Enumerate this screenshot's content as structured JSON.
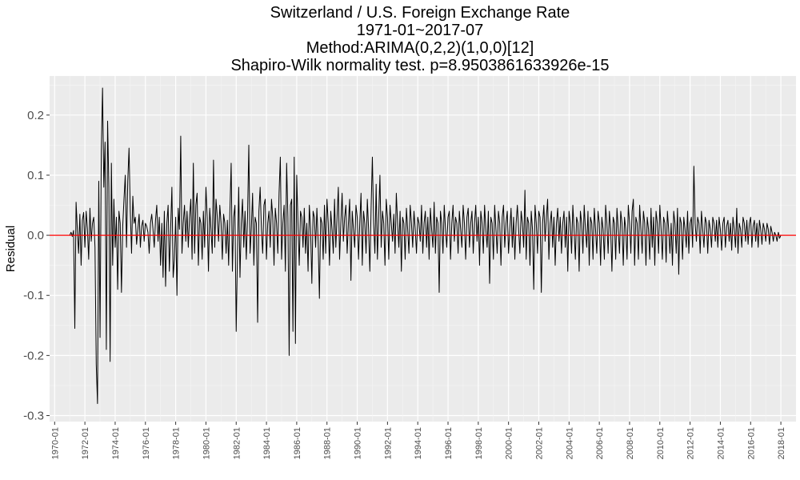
{
  "chart_data": {
    "type": "line",
    "title_lines": [
      "Switzerland / U.S. Foreign Exchange Rate",
      "1971-01~2017-07",
      "Method:ARIMA(0,2,2)(1,0,0)[12]",
      "Shapiro-Wilk normality test. p=8.9503861633926e-15"
    ],
    "xlabel": "",
    "ylabel": "Residual",
    "x_range": [
      "1969-09",
      "2019-01"
    ],
    "ylim": [
      -0.31,
      0.265
    ],
    "y_ticks": [
      -0.3,
      -0.2,
      -0.1,
      0.0,
      0.1,
      0.2
    ],
    "y_tick_labels": [
      "-0.3",
      "-0.2",
      "-0.1",
      "0.0",
      "0.1",
      "0.2"
    ],
    "x_tick_labels": [
      "1970-01",
      "1972-01",
      "1974-01",
      "1976-01",
      "1978-01",
      "1980-01",
      "1982-01",
      "1984-01",
      "1986-01",
      "1988-01",
      "1990-01",
      "1992-01",
      "1994-01",
      "1996-01",
      "1998-01",
      "2000-01",
      "2002-01",
      "2004-01",
      "2006-01",
      "2008-01",
      "2010-01",
      "2012-01",
      "2014-01",
      "2016-01",
      "2018-01"
    ],
    "reference_line": {
      "y": 0,
      "color": "#ff0000"
    },
    "series": [
      {
        "start": "1971-01",
        "end": "2017-07",
        "frequency": "monthly",
        "color": "#000000",
        "values": [
          0.0,
          0.005,
          -0.002,
          0.008,
          -0.155,
          0.055,
          0.01,
          -0.03,
          0.035,
          -0.05,
          0.025,
          0.038,
          -0.02,
          0.04,
          0.01,
          -0.04,
          0.045,
          -0.01,
          0.02,
          0.03,
          -0.02,
          -0.215,
          -0.28,
          0.09,
          -0.17,
          0.14,
          0.245,
          0.08,
          0.155,
          -0.19,
          0.19,
          0.08,
          -0.21,
          0.12,
          -0.05,
          0.06,
          -0.02,
          0.03,
          -0.09,
          0.04,
          0.02,
          -0.095,
          0.015,
          0.06,
          0.1,
          -0.02,
          0.09,
          0.145,
          0.04,
          -0.03,
          0.065,
          0.02,
          0.03,
          -0.015,
          0.01,
          0.035,
          -0.02,
          0.015,
          0.025,
          -0.01,
          0.02,
          0.015,
          0.005,
          -0.03,
          0.02,
          0.035,
          0.01,
          -0.02,
          0.025,
          0.05,
          -0.01,
          0.03,
          -0.05,
          0.02,
          -0.07,
          0.04,
          -0.085,
          0.02,
          0.05,
          -0.06,
          0.01,
          0.08,
          -0.07,
          -0.04,
          0.03,
          -0.1,
          0.045,
          0.01,
          0.165,
          -0.03,
          0.02,
          0.05,
          -0.01,
          0.04,
          -0.02,
          0.03,
          0.06,
          -0.04,
          0.12,
          -0.03,
          0.05,
          0.07,
          -0.05,
          0.03,
          0.02,
          -0.04,
          0.04,
          -0.02,
          0.08,
          0.03,
          -0.06,
          0.045,
          0.01,
          -0.03,
          0.125,
          -0.02,
          0.06,
          0.03,
          -0.01,
          0.05,
          0.02,
          -0.04,
          0.035,
          0.02,
          -0.03,
          0.025,
          -0.05,
          0.04,
          0.12,
          -0.06,
          0.03,
          0.05,
          -0.16,
          -0.03,
          0.08,
          -0.07,
          0.02,
          0.06,
          -0.02,
          0.04,
          -0.04,
          0.03,
          0.15,
          -0.03,
          0.01,
          0.07,
          -0.05,
          0.03,
          0.02,
          -0.145,
          0.04,
          0.08,
          0.01,
          -0.03,
          0.05,
          0.06,
          -0.04,
          0.02,
          0.04,
          -0.02,
          0.06,
          0.03,
          -0.05,
          0.045,
          0.02,
          -0.03,
          0.07,
          0.13,
          -0.04,
          0.02,
          0.05,
          -0.06,
          0.12,
          0.03,
          -0.2,
          0.05,
          0.06,
          -0.16,
          0.13,
          -0.18,
          0.1,
          0.02,
          -0.05,
          0.04,
          0.03,
          -0.02,
          0.045,
          -0.03,
          0.02,
          -0.06,
          0.05,
          0.01,
          -0.08,
          0.04,
          0.03,
          -0.02,
          0.045,
          -0.01,
          -0.105,
          0.03,
          0.02,
          -0.04,
          0.05,
          -0.03,
          0.06,
          0.02,
          -0.05,
          0.04,
          0.01,
          -0.03,
          0.06,
          -0.02,
          0.03,
          0.08,
          -0.04,
          0.02,
          0.07,
          -0.01,
          0.03,
          0.05,
          -0.03,
          0.02,
          0.06,
          -0.075,
          0.04,
          0.01,
          -0.02,
          0.05,
          0.03,
          -0.04,
          0.02,
          0.07,
          -0.05,
          0.04,
          0.02,
          -0.03,
          0.06,
          0.01,
          -0.06,
          0.045,
          0.13,
          0.02,
          -0.03,
          0.085,
          -0.04,
          0.03,
          0.1,
          -0.02,
          0.04,
          0.02,
          -0.05,
          0.06,
          0.03,
          -0.04,
          0.05,
          0.02,
          -0.01,
          0.035,
          -0.03,
          0.07,
          0.02,
          -0.02,
          0.04,
          -0.06,
          0.03,
          0.02,
          -0.04,
          0.045,
          0.01,
          -0.03,
          0.05,
          0.02,
          -0.02,
          0.04,
          0.01,
          -0.03,
          0.03,
          0.02,
          -0.01,
          0.05,
          -0.03,
          0.02,
          0.04,
          -0.02,
          0.03,
          -0.04,
          0.045,
          0.01,
          -0.02,
          0.055,
          -0.03,
          0.03,
          0.02,
          -0.095,
          0.04,
          0.02,
          -0.03,
          0.05,
          0.01,
          -0.02,
          0.03,
          0.04,
          -0.04,
          0.02,
          0.05,
          -0.01,
          0.03,
          0.02,
          -0.03,
          0.04,
          0.01,
          -0.02,
          0.05,
          0.02,
          -0.04,
          0.03,
          0.045,
          -0.02,
          0.02,
          0.04,
          -0.03,
          0.02,
          0.05,
          -0.01,
          0.03,
          -0.05,
          0.04,
          0.02,
          -0.03,
          0.05,
          0.01,
          -0.02,
          0.04,
          -0.08,
          0.03,
          0.02,
          -0.04,
          0.05,
          0.01,
          -0.03,
          0.04,
          0.02,
          -0.05,
          0.03,
          0.05,
          -0.02,
          0.02,
          0.04,
          -0.03,
          0.01,
          0.045,
          -0.02,
          0.03,
          -0.04,
          0.02,
          0.05,
          0.01,
          -0.03,
          0.04,
          0.02,
          -0.02,
          0.075,
          -0.04,
          0.03,
          0.02,
          -0.05,
          0.04,
          0.01,
          -0.09,
          0.05,
          0.02,
          -0.03,
          0.04,
          0.03,
          -0.095,
          0.02,
          0.05,
          -0.01,
          0.03,
          0.06,
          -0.04,
          0.02,
          0.04,
          -0.02,
          0.03,
          -0.05,
          0.02,
          0.045,
          -0.01,
          0.03,
          -0.03,
          0.02,
          0.04,
          -0.02,
          0.03,
          -0.06,
          0.04,
          0.02,
          -0.03,
          0.05,
          0.01,
          -0.04,
          0.03,
          0.02,
          -0.06,
          0.04,
          0.02,
          -0.03,
          0.05,
          0.01,
          -0.02,
          0.04,
          -0.05,
          0.03,
          0.02,
          -0.04,
          0.045,
          0.01,
          -0.03,
          0.04,
          0.02,
          -0.05,
          0.03,
          0.01,
          -0.04,
          0.05,
          0.02,
          -0.03,
          0.04,
          0.01,
          -0.06,
          0.03,
          0.02,
          -0.04,
          0.045,
          0.01,
          -0.03,
          0.04,
          0.02,
          -0.05,
          0.03,
          0.01,
          -0.04,
          0.05,
          0.02,
          -0.03,
          0.04,
          0.06,
          -0.05,
          0.03,
          0.02,
          -0.04,
          0.05,
          0.01,
          -0.03,
          0.04,
          0.02,
          -0.05,
          0.03,
          0.01,
          -0.04,
          0.045,
          -0.02,
          0.03,
          -0.05,
          0.04,
          0.02,
          -0.03,
          0.05,
          0.01,
          -0.04,
          0.03,
          0.02,
          -0.045,
          0.04,
          0.01,
          -0.03,
          0.02,
          -0.05,
          0.04,
          0.02,
          -0.03,
          0.045,
          -0.065,
          0.03,
          0.02,
          -0.04,
          0.03,
          0.01,
          -0.02,
          0.04,
          -0.03,
          0.02,
          0.03,
          -0.02,
          0.115,
          0.02,
          -0.01,
          0.03,
          0.02,
          -0.03,
          0.04,
          0.01,
          -0.02,
          0.03,
          0.02,
          -0.03,
          0.025,
          0.01,
          -0.02,
          0.03,
          0.02,
          -0.01,
          0.025,
          -0.02,
          0.03,
          0.01,
          -0.025,
          0.02,
          0.03,
          -0.02,
          0.015,
          0.025,
          -0.01,
          0.02,
          -0.025,
          0.03,
          0.01,
          -0.02,
          0.045,
          -0.03,
          0.02,
          0.01,
          -0.02,
          0.03,
          0.02,
          -0.01,
          0.025,
          -0.015,
          0.02,
          0.03,
          -0.02,
          0.015,
          0.025,
          -0.01,
          0.02,
          -0.02,
          0.025,
          0.01,
          -0.015,
          0.02,
          0.01,
          -0.01,
          0.02,
          0.01,
          -0.015,
          0.015,
          0.005,
          -0.01,
          0.005,
          0.0,
          -0.01,
          0.005,
          -0.005,
          0.0
        ]
      }
    ]
  }
}
